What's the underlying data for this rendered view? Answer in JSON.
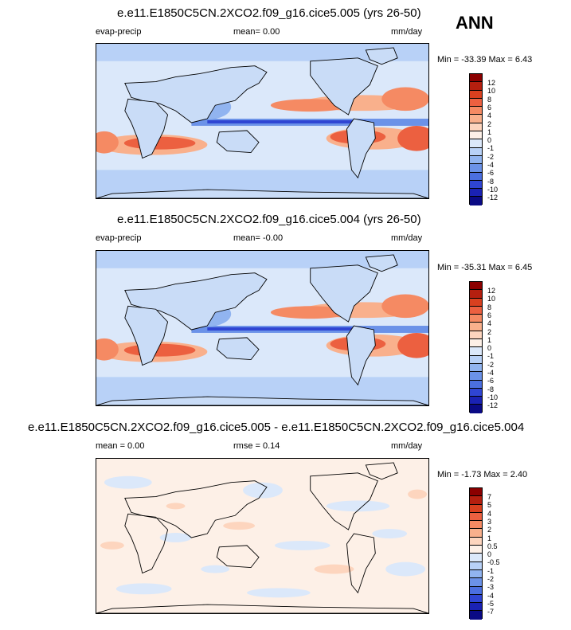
{
  "season": "ANN",
  "panels": [
    {
      "title": "e.e11.E1850C5CN.2XCO2.f09_g16.cice5.005 (yrs 26-50)",
      "left_label": "evap-precip",
      "center_label": "mean=  0.00",
      "units": "mm/day",
      "minmax": "Min = -33.39 Max =   6.43",
      "colorbar": {
        "labels": [
          "12",
          "10",
          "8",
          "6",
          "4",
          "2",
          "1",
          "0",
          "-1",
          "-2",
          "-4",
          "-6",
          "-8",
          "-10",
          "-12"
        ],
        "colors": [
          "#8b0000",
          "#b51f0f",
          "#d9401f",
          "#ec6040",
          "#f58a63",
          "#f9b08c",
          "#fdd5be",
          "#fdf0e7",
          "#dbe8fa",
          "#b8d1f7",
          "#91b4f0",
          "#6b92e8",
          "#4b6fe0",
          "#2f45d3",
          "#1a22b4",
          "#0a0a85"
        ]
      }
    },
    {
      "title": "e.e11.E1850C5CN.2XCO2.f09_g16.cice5.004 (yrs 26-50)",
      "left_label": "evap-precip",
      "center_label": "mean= -0.00",
      "units": "mm/day",
      "minmax": "Min = -35.31 Max =   6.45",
      "colorbar": {
        "labels": [
          "12",
          "10",
          "8",
          "6",
          "4",
          "2",
          "1",
          "0",
          "-1",
          "-2",
          "-4",
          "-6",
          "-8",
          "-10",
          "-12"
        ],
        "colors": [
          "#8b0000",
          "#b51f0f",
          "#d9401f",
          "#ec6040",
          "#f58a63",
          "#f9b08c",
          "#fdd5be",
          "#fdf0e7",
          "#dbe8fa",
          "#b8d1f7",
          "#91b4f0",
          "#6b92e8",
          "#4b6fe0",
          "#2f45d3",
          "#1a22b4",
          "#0a0a85"
        ]
      }
    },
    {
      "title": "e.e11.E1850C5CN.2XCO2.f09_g16.cice5.005 - e.e11.E1850C5CN.2XCO2.f09_g16.cice5.004",
      "left_label": "mean =  0.00",
      "center_label": "rmse =  0.14",
      "units": "mm/day",
      "minmax": "Min =  -1.73 Max =   2.40",
      "colorbar": {
        "labels": [
          "7",
          "5",
          "4",
          "3",
          "2",
          "1",
          "0.5",
          "0",
          "-0.5",
          "-1",
          "-2",
          "-3",
          "-4",
          "-5",
          "-7"
        ],
        "colors": [
          "#8b0000",
          "#b51f0f",
          "#d9401f",
          "#ec6040",
          "#f58a63",
          "#f9b08c",
          "#fdd5be",
          "#fdf0e7",
          "#dbe8fa",
          "#b8d1f7",
          "#91b4f0",
          "#6b92e8",
          "#4b6fe0",
          "#2f45d3",
          "#1a22b4",
          "#0a0a85"
        ]
      }
    }
  ]
}
